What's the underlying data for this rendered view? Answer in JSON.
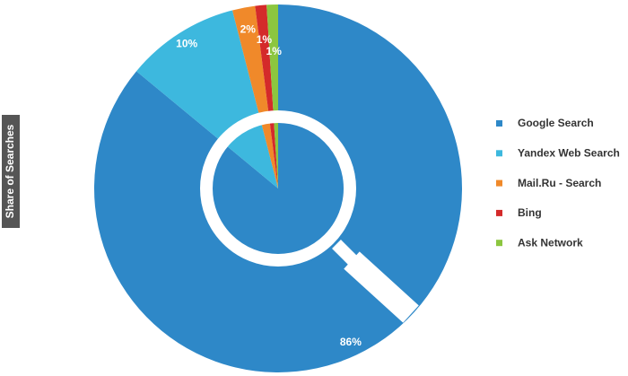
{
  "chart_data": {
    "type": "pie",
    "ylabel": "Share of Searches",
    "categories": [
      "Google Search",
      "Yandex Web Search",
      "Mail.Ru - Search",
      "Bing",
      "Ask Network"
    ],
    "values": [
      86,
      10,
      2,
      1,
      1
    ],
    "value_labels": [
      "86%",
      "10%",
      "2%",
      "1%",
      "1%"
    ],
    "colors": [
      "#2e88c8",
      "#3db8de",
      "#f0892a",
      "#d42a2a",
      "#8cc63f"
    ],
    "legend": "right"
  }
}
